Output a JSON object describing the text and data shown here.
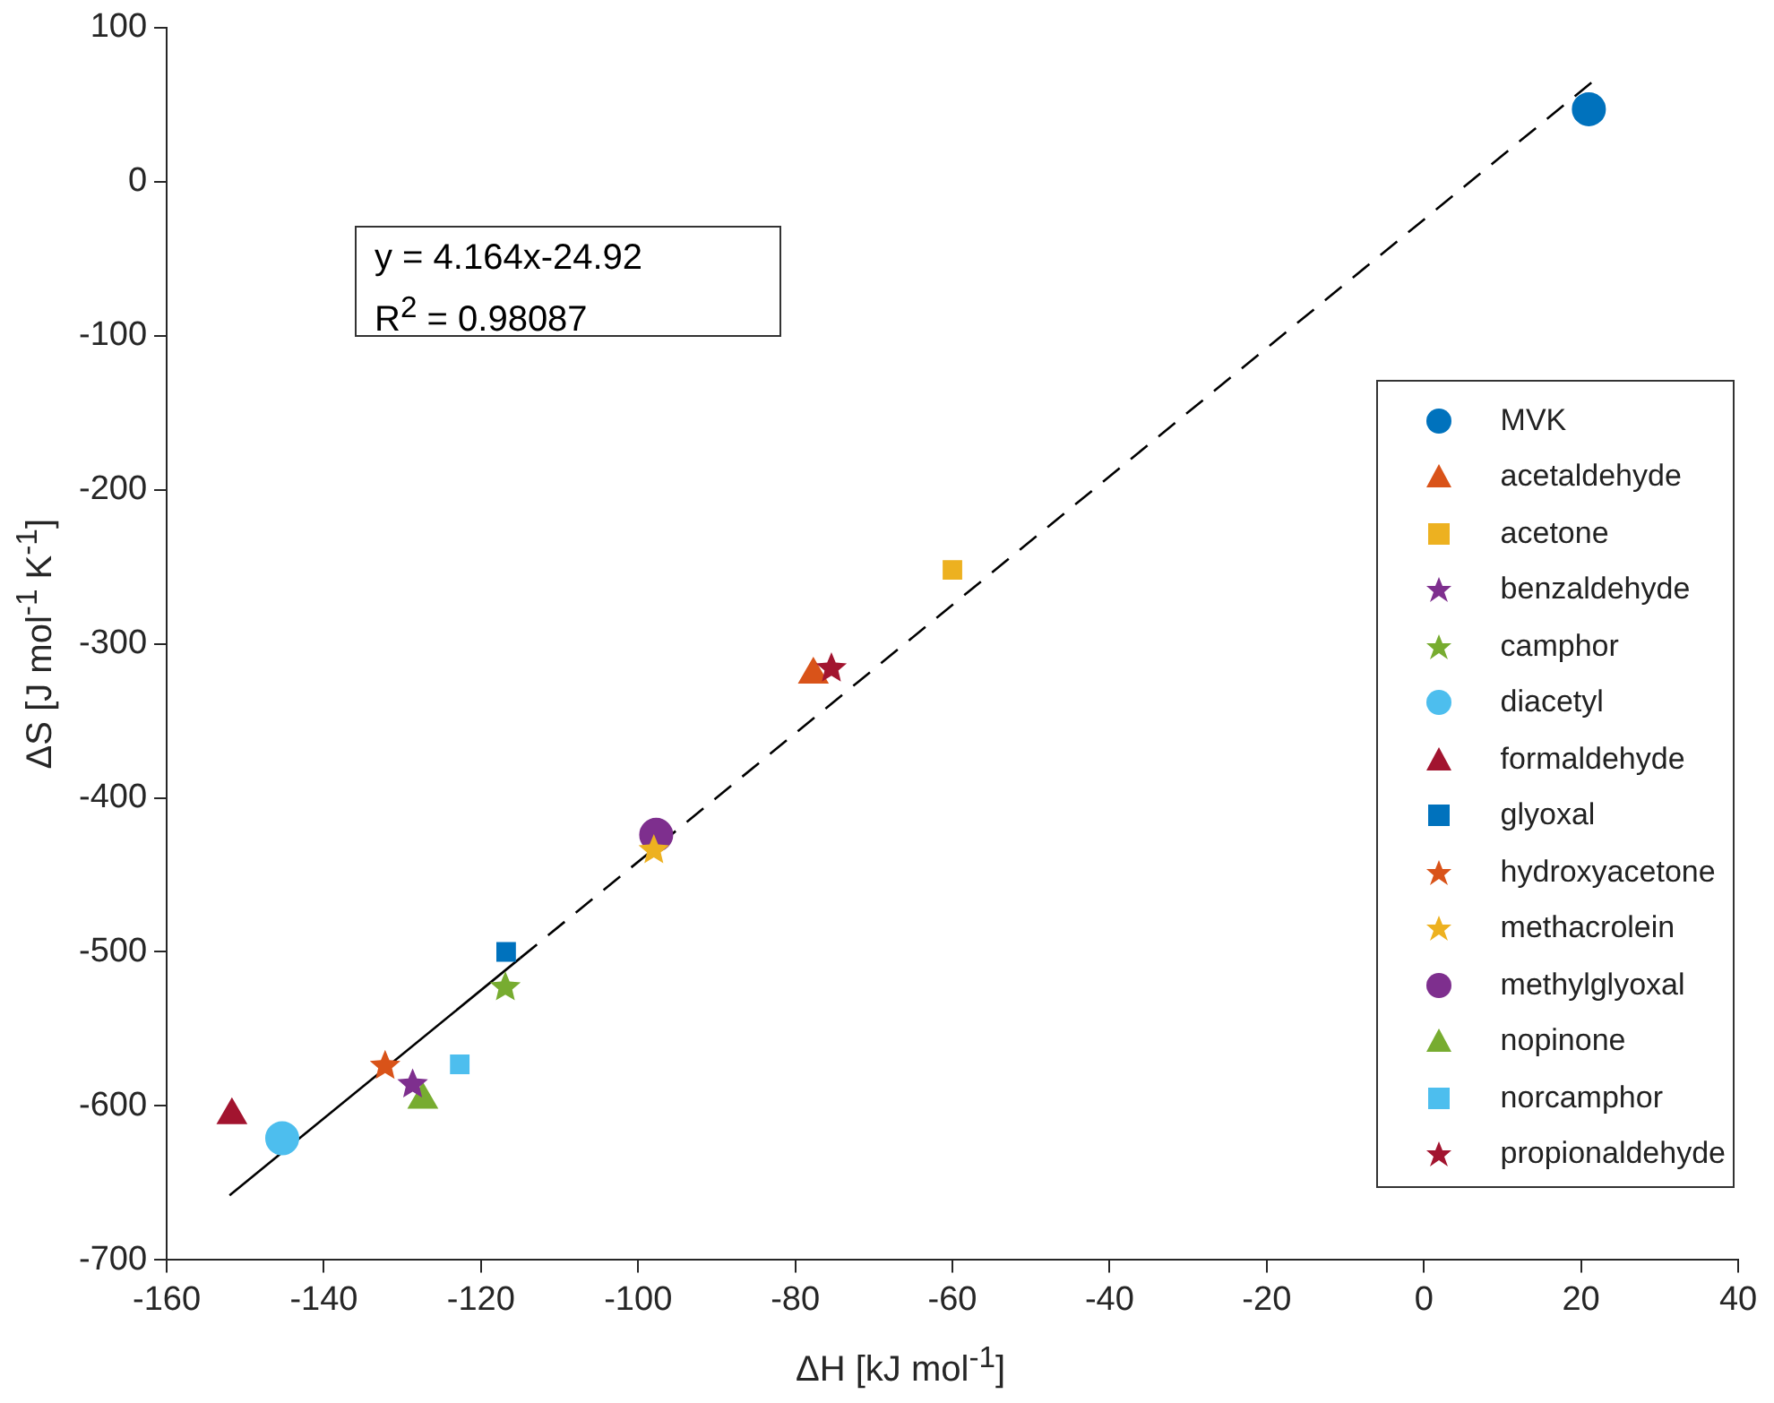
{
  "chart_data": {
    "type": "scatter",
    "xlabel": "ΔH [kJ mol$^{-1}$]",
    "ylabel": "ΔS [J mol$^{-1}$ K$^{-1}$]",
    "xlim": [
      -160,
      40
    ],
    "xticks": [
      -160,
      -140,
      -120,
      -100,
      -80,
      -60,
      -40,
      -20,
      0,
      20,
      40
    ],
    "ylim": [
      -700,
      100
    ],
    "yticks": [
      -700,
      -600,
      -500,
      -400,
      -300,
      -200,
      -100,
      0,
      100
    ],
    "grid": false,
    "legend": "bottom right",
    "annotations": [
      "y = 4.164x-24.92",
      "R$^{2}$ = 0.98087"
    ],
    "series": [
      {
        "name": "MVK",
        "color": "#0072bd",
        "marker": "circle",
        "x": [
          21
        ],
        "values": [
          47
        ]
      },
      {
        "name": "acetaldehyde",
        "color": "#d95319",
        "marker": "triangle",
        "x": [
          -77.7
        ],
        "values": [
          -320
        ]
      },
      {
        "name": "acetone",
        "color": "#edb120",
        "marker": "square",
        "x": [
          -60
        ],
        "values": [
          -252
        ]
      },
      {
        "name": "benzaldehyde",
        "color": "#7e2f8e",
        "marker": "star",
        "x": [
          -128.7
        ],
        "values": [
          -586
        ]
      },
      {
        "name": "camphor",
        "color": "#77ac30",
        "marker": "star",
        "x": [
          -116.9
        ],
        "values": [
          -523
        ]
      },
      {
        "name": "diacetyl",
        "color": "#4dbeee",
        "marker": "circle",
        "x": [
          -145.3
        ],
        "values": [
          -621
        ]
      },
      {
        "name": "formaldehyde",
        "color": "#a2142f",
        "marker": "triangle",
        "x": [
          -151.7
        ],
        "values": [
          -606
        ]
      },
      {
        "name": "glyoxal",
        "color": "#0072bd",
        "marker": "square",
        "x": [
          -116.8
        ],
        "values": [
          -500
        ]
      },
      {
        "name": "hydroxyacetone",
        "color": "#d95319",
        "marker": "star",
        "x": [
          -132.2
        ],
        "values": [
          -574
        ]
      },
      {
        "name": "methacrolein",
        "color": "#edb120",
        "marker": "star",
        "x": [
          -98
        ],
        "values": [
          -434
        ]
      },
      {
        "name": "methylglyoxal",
        "color": "#7e2f8e",
        "marker": "circle",
        "x": [
          -97.7
        ],
        "values": [
          -424
        ]
      },
      {
        "name": "nopinone",
        "color": "#77ac30",
        "marker": "triangle",
        "x": [
          -127.4
        ],
        "values": [
          -596
        ]
      },
      {
        "name": "norcamphor",
        "color": "#4dbeee",
        "marker": "square",
        "x": [
          -122.7
        ],
        "values": [
          -573
        ]
      },
      {
        "name": "propionaldehyde",
        "color": "#a2142f",
        "marker": "star",
        "x": [
          -75.4
        ],
        "values": [
          -316
        ]
      },
      {
        "type": "line",
        "color": "#000000",
        "line_style": "solid",
        "marker": "none",
        "x": [
          -152,
          -115
        ],
        "values": [
          -658,
          -504
        ]
      },
      {
        "type": "line",
        "color": "#000000",
        "line_style": "dashed",
        "marker": "none",
        "x": [
          -115,
          21.5
        ],
        "values": [
          -504,
          65
        ]
      }
    ]
  }
}
